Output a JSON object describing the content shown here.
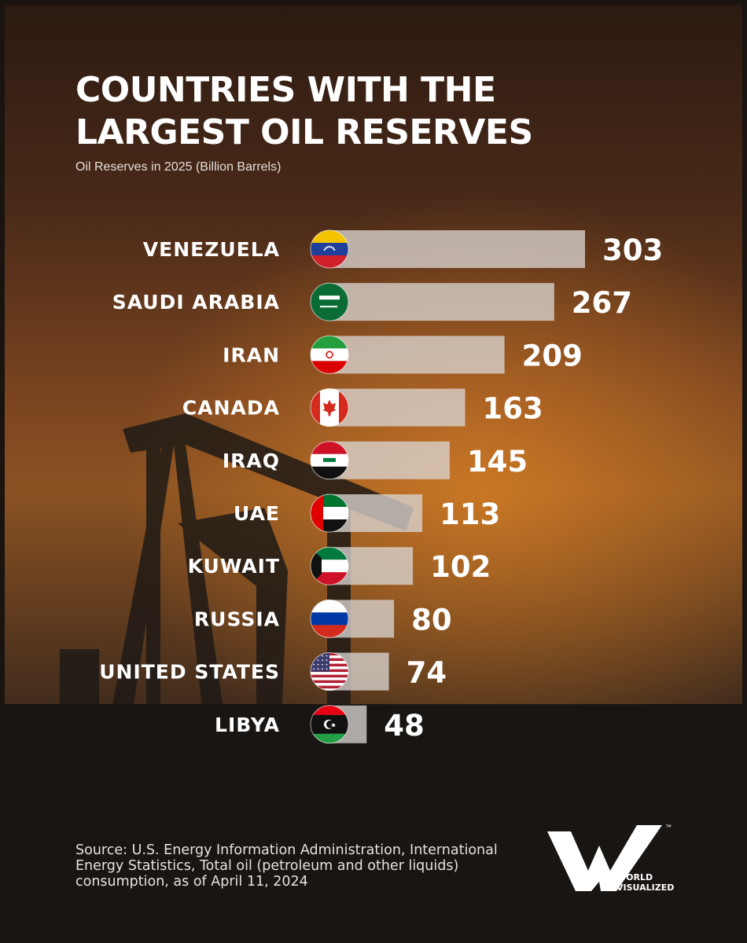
{
  "chart_data": {
    "type": "bar",
    "orientation": "horizontal",
    "title": "COUNTRIES WITH THE\nLARGEST OIL RESERVES",
    "subtitle": "Oil Reserves in 2025 (Billion Barrels)",
    "categories": [
      "VENEZUELA",
      "SAUDI ARABIA",
      "IRAN",
      "CANADA",
      "IRAQ",
      "UAE",
      "KUWAIT",
      "RUSSIA",
      "UNITED STATES",
      "LIBYA"
    ],
    "values": [
      303,
      267,
      209,
      163,
      145,
      113,
      102,
      80,
      74,
      48
    ],
    "value_labels": [
      "303",
      "267",
      "209",
      "163",
      "145",
      "113",
      "102",
      "80",
      "74",
      "48"
    ],
    "flag_icons": [
      "venezuela-flag-icon",
      "saudi-arabia-flag-icon",
      "iran-flag-icon",
      "canada-flag-icon",
      "iraq-flag-icon",
      "uae-flag-icon",
      "kuwait-flag-icon",
      "russia-flag-icon",
      "united-states-flag-icon",
      "libya-flag-icon"
    ],
    "xlim": [
      0,
      303
    ],
    "grid": false,
    "bar_color": "#d9d4d0"
  },
  "source": "Source: U.S. Energy Information Administration, International Energy Statistics, Total oil (petroleum and other liquids) consumption, as of April 11, 2024",
  "logo": {
    "line1": "WORLD",
    "line2": "VISUALIZED",
    "tm": "™"
  }
}
